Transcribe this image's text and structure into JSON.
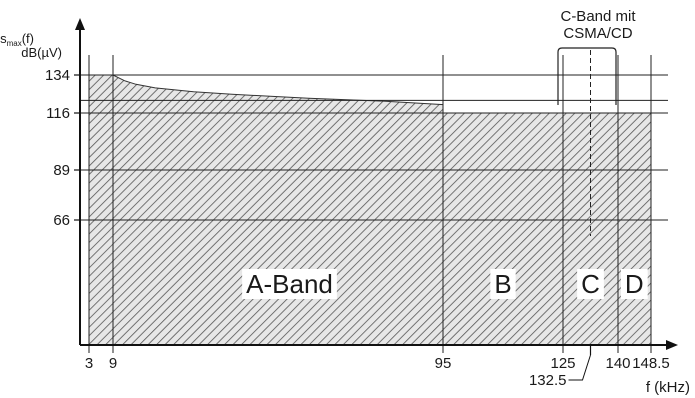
{
  "chart_data": {
    "type": "area",
    "ylabel": "s",
    "ylabel_sub": "max",
    "ylabel_suffix": "(f)",
    "yunit": "dB(µV)",
    "xlabel": "f (kHz)",
    "y_ticks": [
      {
        "value": 66,
        "label": "66"
      },
      {
        "value": 89,
        "label": "89"
      },
      {
        "value": 116,
        "label": "116"
      },
      {
        "value": 134,
        "label": "134"
      }
    ],
    "x_ticks": [
      {
        "value": 3,
        "label": "3"
      },
      {
        "value": 9,
        "label": "9"
      },
      {
        "value": 95,
        "label": "95"
      },
      {
        "value": 125,
        "label": "125"
      },
      {
        "value": 140,
        "label": "140"
      },
      {
        "value": 148.5,
        "label": "148.5"
      }
    ],
    "special_tick": {
      "value": 132.5,
      "label": "132.5"
    },
    "limit_curve": {
      "x": [
        3,
        9,
        12,
        15,
        20,
        30,
        40,
        50,
        60,
        70,
        80,
        95,
        95,
        148.5
      ],
      "y": [
        134,
        134,
        131.3,
        129.6,
        127.9,
        126.1,
        124.9,
        123.9,
        123,
        122.3,
        121.6,
        120,
        116,
        116
      ]
    },
    "extra_gridlines_y": [
      122
    ],
    "bands": [
      {
        "name": "A-Band",
        "x_center": 55
      },
      {
        "name": "B",
        "x_center": 110
      },
      {
        "name": "C",
        "x_center": 132.5
      },
      {
        "name": "D",
        "x_center": 144.2
      }
    ],
    "csma_annotation": {
      "text_line1": "C-Band mit",
      "text_line2": "CSMA/CD",
      "x_from": 125,
      "x_to": 140
    },
    "colors": {
      "hatch": "#444444",
      "fill": "#e7e7e7",
      "grid": "#222222",
      "axis": "#111111"
    }
  }
}
